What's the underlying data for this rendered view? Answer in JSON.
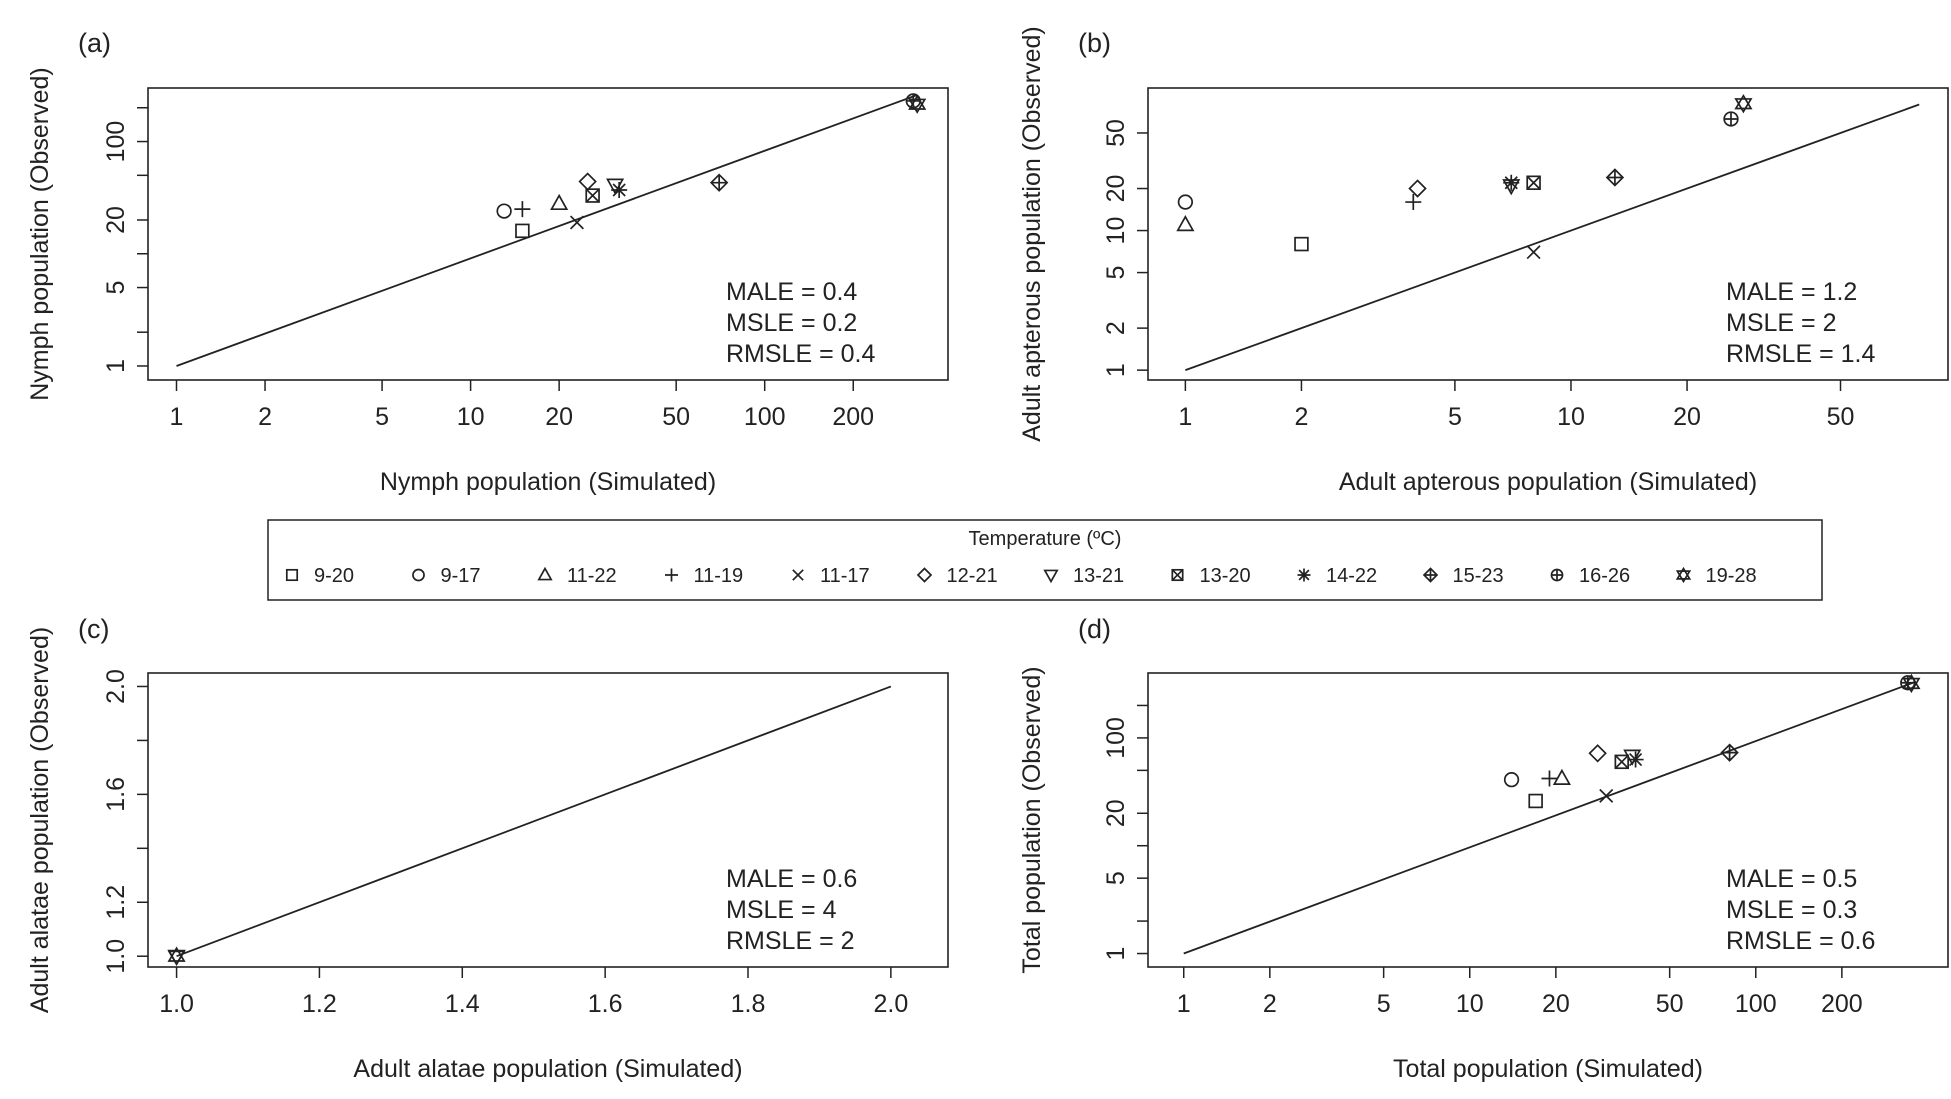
{
  "legend": {
    "title": "Temperature (ºC)",
    "entries": [
      {
        "label": "9-20",
        "marker": "square"
      },
      {
        "label": "9-17",
        "marker": "circle"
      },
      {
        "label": "11-22",
        "marker": "triangle-up"
      },
      {
        "label": "11-19",
        "marker": "plus"
      },
      {
        "label": "11-17",
        "marker": "cross"
      },
      {
        "label": "12-21",
        "marker": "diamond"
      },
      {
        "label": "13-21",
        "marker": "triangle-down"
      },
      {
        "label": "13-20",
        "marker": "square-x"
      },
      {
        "label": "14-22",
        "marker": "asterisk"
      },
      {
        "label": "15-23",
        "marker": "diamond-plus"
      },
      {
        "label": "16-26",
        "marker": "circle-plus"
      },
      {
        "label": "19-28",
        "marker": "star-of-david"
      }
    ]
  },
  "chart_data": [
    {
      "tag": "(a)",
      "type": "scatter",
      "xlabel": "Nymph population (Simulated)",
      "ylabel": "Nymph population (Observed)",
      "xscale": "log",
      "yscale": "log",
      "xlim": [
        0.8,
        420
      ],
      "ylim": [
        0.75,
        300
      ],
      "xticks": [
        1,
        2,
        5,
        10,
        20,
        50,
        100,
        200
      ],
      "xticklabels": [
        "1",
        "2",
        "5",
        "10",
        "20",
        "50",
        "100",
        "200"
      ],
      "yticks": [
        1,
        2,
        5,
        10,
        20,
        50,
        100,
        200
      ],
      "yticklabels": [
        "1",
        "",
        "5",
        "",
        "20",
        "",
        "100",
        ""
      ],
      "reference_line": {
        "from": [
          1,
          1
        ],
        "to": [
          330,
          260
        ]
      },
      "metrics": [
        "MALE =  0.4",
        "MSLE =  0.2",
        "RMSLE =  0.4"
      ],
      "points": [
        {
          "series": "9-20",
          "x": 15,
          "y": 16
        },
        {
          "series": "9-17",
          "x": 13,
          "y": 24
        },
        {
          "series": "11-22",
          "x": 20,
          "y": 28
        },
        {
          "series": "11-19",
          "x": 15,
          "y": 25
        },
        {
          "series": "11-17",
          "x": 23,
          "y": 19
        },
        {
          "series": "12-21",
          "x": 25,
          "y": 44
        },
        {
          "series": "13-21",
          "x": 31,
          "y": 41
        },
        {
          "series": "13-20",
          "x": 26,
          "y": 33
        },
        {
          "series": "14-22",
          "x": 32,
          "y": 37
        },
        {
          "series": "15-23",
          "x": 70,
          "y": 43
        },
        {
          "series": "16-26",
          "x": 320,
          "y": 230
        },
        {
          "series": "19-28",
          "x": 330,
          "y": 215
        }
      ]
    },
    {
      "tag": "(b)",
      "type": "scatter",
      "xlabel": "Adult apterous population (Simulated)",
      "ylabel": "Adult apterous population (Observed)",
      "xscale": "log",
      "yscale": "log",
      "xlim": [
        0.8,
        95
      ],
      "ylim": [
        0.85,
        105
      ],
      "xticks": [
        1,
        2,
        5,
        10,
        20,
        50
      ],
      "xticklabels": [
        "1",
        "2",
        "5",
        "10",
        "20",
        "50"
      ],
      "yticks": [
        1,
        2,
        5,
        10,
        20,
        50
      ],
      "yticklabels": [
        "1",
        "2",
        "5",
        "10",
        "20",
        "50"
      ],
      "reference_line": {
        "from": [
          1,
          1
        ],
        "to": [
          80,
          80
        ]
      },
      "metrics": [
        "MALE =  1.2",
        "MSLE =  2",
        "RMSLE =  1.4"
      ],
      "points": [
        {
          "series": "9-20",
          "x": 2,
          "y": 8
        },
        {
          "series": "9-17",
          "x": 1,
          "y": 16
        },
        {
          "series": "11-22",
          "x": 1,
          "y": 11
        },
        {
          "series": "11-19",
          "x": 3.9,
          "y": 16
        },
        {
          "series": "11-17",
          "x": 8,
          "y": 7
        },
        {
          "series": "12-21",
          "x": 4,
          "y": 20
        },
        {
          "series": "13-21",
          "x": 7,
          "y": 21
        },
        {
          "series": "13-20",
          "x": 8,
          "y": 22
        },
        {
          "series": "14-22",
          "x": 7,
          "y": 22
        },
        {
          "series": "15-23",
          "x": 13,
          "y": 24
        },
        {
          "series": "16-26",
          "x": 26,
          "y": 63
        },
        {
          "series": "19-28",
          "x": 28,
          "y": 81
        }
      ]
    },
    {
      "tag": "(c)",
      "type": "scatter",
      "xlabel": "Adult alatae population (Simulated)",
      "ylabel": "Adult alatae population (Observed)",
      "xscale": "linear",
      "yscale": "linear",
      "xlim": [
        0.96,
        2.08
      ],
      "ylim": [
        0.96,
        2.05
      ],
      "xticks": [
        1.0,
        1.2,
        1.4,
        1.6,
        1.8,
        2.0
      ],
      "xticklabels": [
        "1.0",
        "1.2",
        "1.4",
        "1.6",
        "1.8",
        "2.0"
      ],
      "yticks": [
        1.0,
        1.2,
        1.4,
        1.6,
        1.8,
        2.0
      ],
      "yticklabels": [
        "1.0",
        "1.2",
        "",
        "1.6",
        "",
        "2.0"
      ],
      "reference_line": {
        "from": [
          1,
          1
        ],
        "to": [
          2,
          2
        ]
      },
      "metrics": [
        "MALE =  0.6",
        "MSLE =  4",
        "RMSLE =  2"
      ],
      "points": [
        {
          "series": "13-21",
          "x": 1,
          "y": 1
        },
        {
          "series": "19-28",
          "x": 1,
          "y": 1
        }
      ]
    },
    {
      "tag": "(d)",
      "type": "scatter",
      "xlabel": "Total population (Simulated)",
      "ylabel": "Total population (Observed)",
      "xscale": "log",
      "yscale": "log",
      "xlim": [
        0.75,
        470
      ],
      "ylim": [
        0.75,
        400
      ],
      "xticks": [
        1,
        2,
        5,
        10,
        20,
        50,
        100,
        200
      ],
      "xticklabels": [
        "1",
        "2",
        "5",
        "10",
        "20",
        "50",
        "100",
        "200"
      ],
      "yticks": [
        1,
        2,
        5,
        10,
        20,
        50,
        100,
        200
      ],
      "yticklabels": [
        "1",
        "",
        "5",
        "",
        "20",
        "",
        "100",
        ""
      ],
      "reference_line": {
        "from": [
          1,
          1
        ],
        "to": [
          360,
          330
        ]
      },
      "metrics": [
        "MALE =  0.5",
        "MSLE =  0.3",
        "RMSLE =  0.6"
      ],
      "points": [
        {
          "series": "9-20",
          "x": 17,
          "y": 26
        },
        {
          "series": "9-17",
          "x": 14,
          "y": 41
        },
        {
          "series": "11-22",
          "x": 21,
          "y": 42
        },
        {
          "series": "11-19",
          "x": 19,
          "y": 42
        },
        {
          "series": "11-17",
          "x": 30,
          "y": 29
        },
        {
          "series": "12-21",
          "x": 28,
          "y": 72
        },
        {
          "series": "13-21",
          "x": 37,
          "y": 68
        },
        {
          "series": "13-20",
          "x": 34,
          "y": 60
        },
        {
          "series": "14-22",
          "x": 38,
          "y": 63
        },
        {
          "series": "15-23",
          "x": 81,
          "y": 73
        },
        {
          "series": "16-26",
          "x": 340,
          "y": 325
        },
        {
          "series": "19-28",
          "x": 350,
          "y": 320
        }
      ]
    }
  ]
}
